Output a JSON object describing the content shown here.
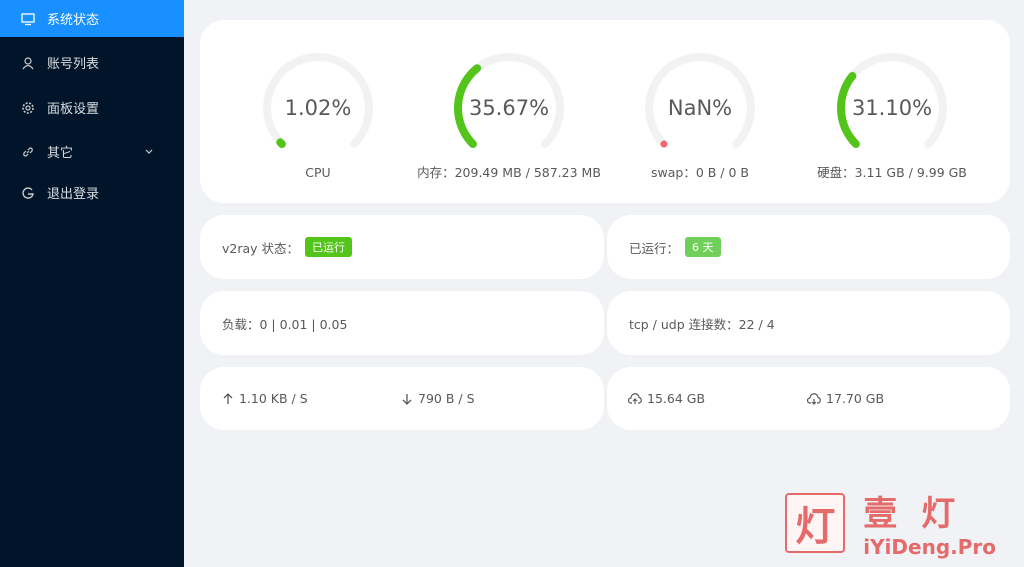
{
  "menu": [
    {
      "label": "系统状态"
    },
    {
      "label": "账号列表"
    },
    {
      "label": "面板设置"
    },
    {
      "label": "其它"
    },
    {
      "label": "退出登录"
    }
  ],
  "gauges": [
    {
      "label": "1.02%",
      "value": 1.02,
      "caption": "CPU",
      "color": "#52c41a"
    },
    {
      "label": "35.67%",
      "value": 35.67,
      "caption": "内存：209.49 MB / 587.23 MB",
      "color": "#52c41a"
    },
    {
      "label": "NaN%",
      "value": null,
      "caption": "swap：0 B / 0 B",
      "color": "#f5686e"
    },
    {
      "label": "31.10%",
      "value": 31.1,
      "caption": "硬盘：3.11 GB / 9.99 GB",
      "color": "#52c41a"
    }
  ],
  "status": {
    "v2ray_label": "v2ray 状态：",
    "v2ray_tag": "已运行",
    "uptime_label": "已运行：",
    "uptime_tag": "6 天"
  },
  "load": "负载：0 | 0.01 | 0.05",
  "connections": "tcp / udp 连接数：22 / 4",
  "speed": {
    "up": "1.10 KB / S",
    "down": "790 B / S"
  },
  "traffic": {
    "up": "15.64 GB",
    "down": "17.70 GB"
  },
  "watermark": {
    "icon": "灯",
    "title": "壹灯",
    "url": "iYiDeng.Pro"
  }
}
